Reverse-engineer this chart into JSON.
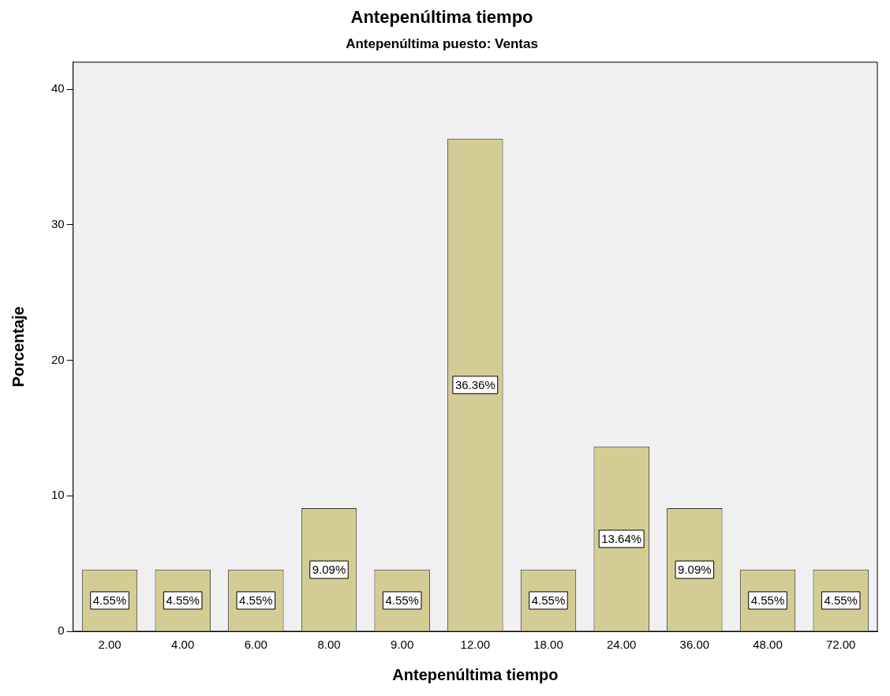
{
  "chart_data": {
    "type": "bar",
    "title": "Antepenúltima tiempo",
    "subtitle": "Antepenúltima puesto: Ventas",
    "xlabel": "Antepenúltima tiempo",
    "ylabel": "Porcentaje",
    "categories": [
      "2.00",
      "4.00",
      "6.00",
      "8.00",
      "9.00",
      "12.00",
      "18.00",
      "24.00",
      "36.00",
      "48.00",
      "72.00"
    ],
    "values": [
      4.55,
      4.55,
      4.55,
      9.09,
      4.55,
      36.36,
      4.55,
      13.64,
      9.09,
      4.55,
      4.55
    ],
    "value_labels": [
      "4.55%",
      "4.55%",
      "4.55%",
      "9.09%",
      "4.55%",
      "36.36%",
      "4.55%",
      "13.64%",
      "9.09%",
      "4.55%",
      "4.55%"
    ],
    "color": "#d3cc94",
    "ylim": [
      0,
      42
    ],
    "yticks": [
      0,
      10,
      20,
      30,
      40
    ],
    "grid": false,
    "legend": false
  }
}
